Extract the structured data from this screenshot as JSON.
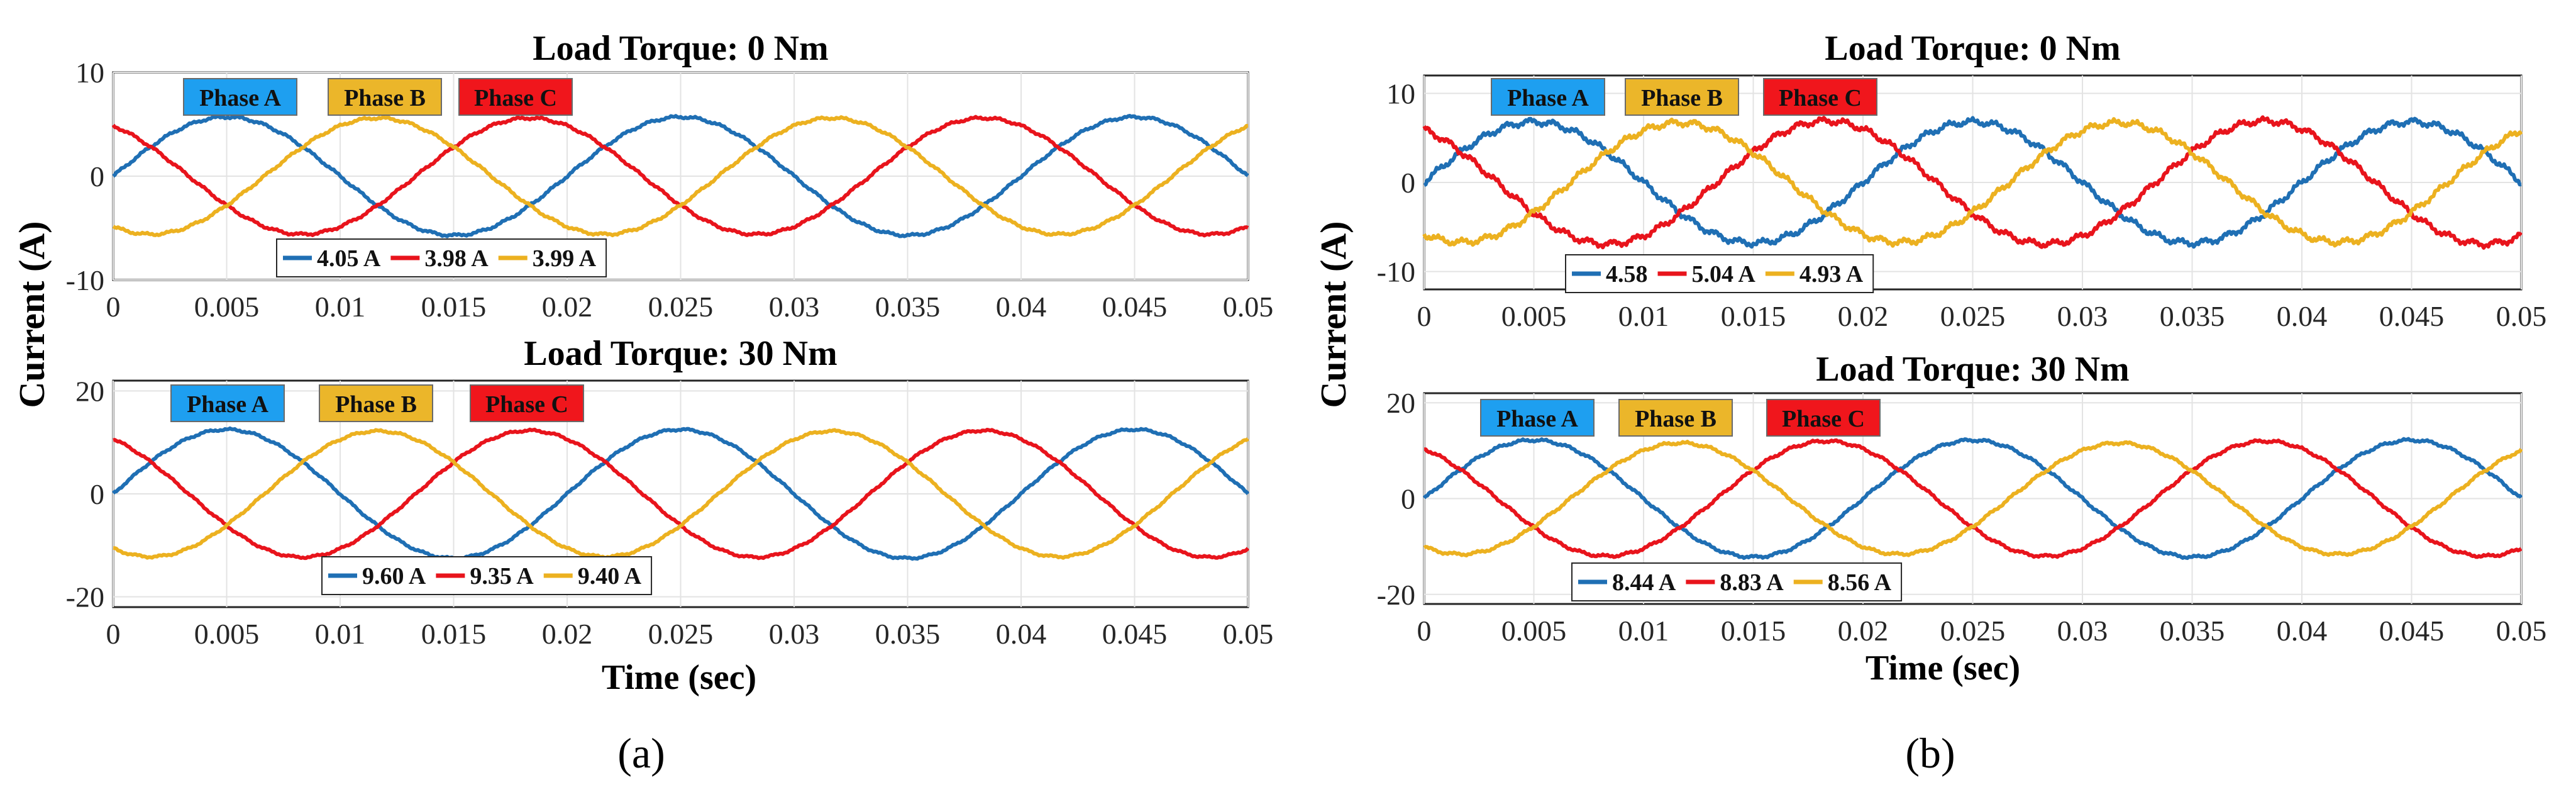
{
  "figure": {
    "subfigure_labels": [
      "(a)",
      "(b)"
    ],
    "ylabel": "Current (A)",
    "xlabel": "Time (sec)",
    "xticks": [
      "0",
      "0.005",
      "0.01",
      "0.015",
      "0.02",
      "0.025",
      "0.03",
      "0.035",
      "0.04",
      "0.045",
      "0.05"
    ]
  },
  "colors": {
    "phase_a": "#1f6fb4",
    "phase_b": "#ecb120",
    "phase_c": "#e8141c",
    "tag_a": "#1e9ff0",
    "tag_b": "#ebb62a",
    "tag_c": "#f0161c"
  },
  "chart_data": [
    {
      "id": "a-top",
      "type": "line",
      "title": "Load Torque: 0 Nm",
      "xlabel": "",
      "ylabel": "Current (A)",
      "xlim": [
        0,
        0.05
      ],
      "ylim": [
        -10,
        10
      ],
      "yticks": [
        "10",
        "0",
        "-10"
      ],
      "ytick_values": [
        10,
        0,
        -10
      ],
      "frequency_hz": 50,
      "phase_tags": [
        "Phase A",
        "Phase B",
        "Phase C"
      ],
      "series": [
        {
          "name": "Phase A",
          "legend": "4.05 A",
          "amplitude": 5.7,
          "phase_deg": 0,
          "noise": 0.15
        },
        {
          "name": "Phase C",
          "legend": "3.98 A",
          "amplitude": 5.6,
          "phase_deg": 120,
          "noise": 0.15
        },
        {
          "name": "Phase B",
          "legend": "3.99 A",
          "amplitude": 5.6,
          "phase_deg": -120,
          "noise": 0.15
        }
      ]
    },
    {
      "id": "a-bottom",
      "type": "line",
      "title": "Load Torque: 30 Nm",
      "xlabel": "Time (sec)",
      "ylabel": "Current (A)",
      "xlim": [
        0,
        0.05
      ],
      "ylim": [
        -22,
        22
      ],
      "yticks": [
        "20",
        "0",
        "-20"
      ],
      "ytick_values": [
        20,
        0,
        -20
      ],
      "frequency_hz": 50,
      "phase_tags": [
        "Phase A",
        "Phase B",
        "Phase C"
      ],
      "series": [
        {
          "name": "Phase A",
          "legend": "9.60 A",
          "amplitude": 12.5,
          "phase_deg": 0,
          "noise": 0.25
        },
        {
          "name": "Phase C",
          "legend": "9.35 A",
          "amplitude": 12.3,
          "phase_deg": 120,
          "noise": 0.25
        },
        {
          "name": "Phase B",
          "legend": "9.40 A",
          "amplitude": 12.2,
          "phase_deg": -120,
          "noise": 0.25
        }
      ]
    },
    {
      "id": "b-top",
      "type": "line",
      "title": "Load Torque: 0 Nm",
      "xlabel": "",
      "ylabel": "Current (A)",
      "xlim": [
        0,
        0.05
      ],
      "ylim": [
        -12,
        12
      ],
      "yticks": [
        "10",
        "0",
        "-10"
      ],
      "ytick_values": [
        10,
        0,
        -10
      ],
      "frequency_hz": 50,
      "phase_tags": [
        "Phase A",
        "Phase B",
        "Phase C"
      ],
      "series": [
        {
          "name": "Phase A",
          "legend": "4.58",
          "amplitude": 6.8,
          "phase_deg": 0,
          "noise": 0.45
        },
        {
          "name": "Phase C",
          "legend": "5.04 A",
          "amplitude": 6.9,
          "phase_deg": 120,
          "noise": 0.45
        },
        {
          "name": "Phase B",
          "legend": "4.93 A",
          "amplitude": 6.7,
          "phase_deg": -120,
          "noise": 0.45
        }
      ]
    },
    {
      "id": "b-bottom",
      "type": "line",
      "title": "Load Torque: 30 Nm",
      "xlabel": "Time (sec)",
      "ylabel": "Current (A)",
      "xlim": [
        0,
        0.05
      ],
      "ylim": [
        -22,
        22
      ],
      "yticks": [
        "20",
        "0",
        "-20"
      ],
      "ytick_values": [
        20,
        0,
        -20
      ],
      "frequency_hz": 50,
      "phase_tags": [
        "Phase A",
        "Phase B",
        "Phase C"
      ],
      "series": [
        {
          "name": "Phase A",
          "legend": "8.44 A",
          "amplitude": 12.2,
          "phase_deg": 0,
          "noise": 0.35
        },
        {
          "name": "Phase C",
          "legend": "8.83 A",
          "amplitude": 12.0,
          "phase_deg": 120,
          "noise": 0.35
        },
        {
          "name": "Phase B",
          "legend": "8.56 A",
          "amplitude": 11.6,
          "phase_deg": -120,
          "noise": 0.35
        }
      ]
    }
  ]
}
